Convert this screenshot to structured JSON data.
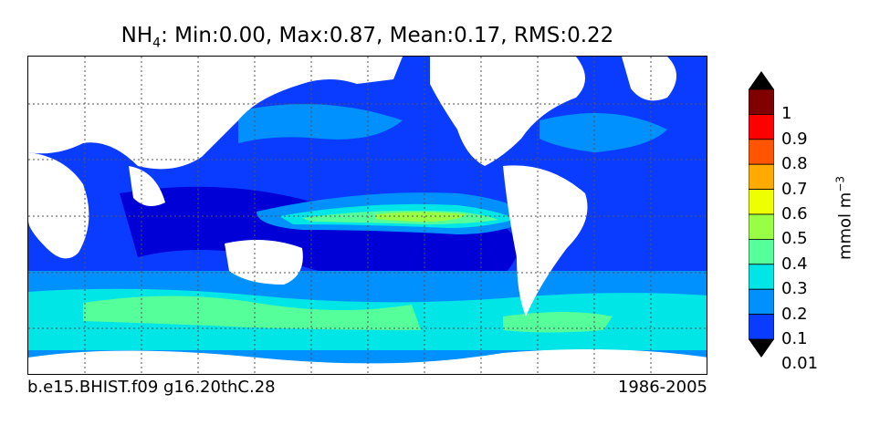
{
  "title": {
    "variable": "NH",
    "subscript": "4",
    "stats": ": Min:0.00, Max:0.87, Mean:0.17, RMS:0.22"
  },
  "case_id": "b.e15.BHIST.f09 g16.20thC.28",
  "years": "1986-2005",
  "colorbar": {
    "label_prefix": "mmol m",
    "label_exponent": "−3",
    "ticks": [
      "1",
      "0.9",
      "0.8",
      "0.7",
      "0.6",
      "0.5",
      "0.4",
      "0.3",
      "0.2",
      "0.1",
      "0.01"
    ],
    "levels": [
      0,
      0.01,
      0.1,
      0.2,
      0.3,
      0.4,
      0.5,
      0.6,
      0.7,
      0.8,
      0.9,
      1
    ],
    "colors": [
      "#00008f",
      "#0000d6",
      "#0a3cff",
      "#0091ff",
      "#00e6e6",
      "#55ff99",
      "#99ff44",
      "#eeff00",
      "#ffaa00",
      "#ff5500",
      "#ff0000",
      "#800000"
    ]
  }
}
